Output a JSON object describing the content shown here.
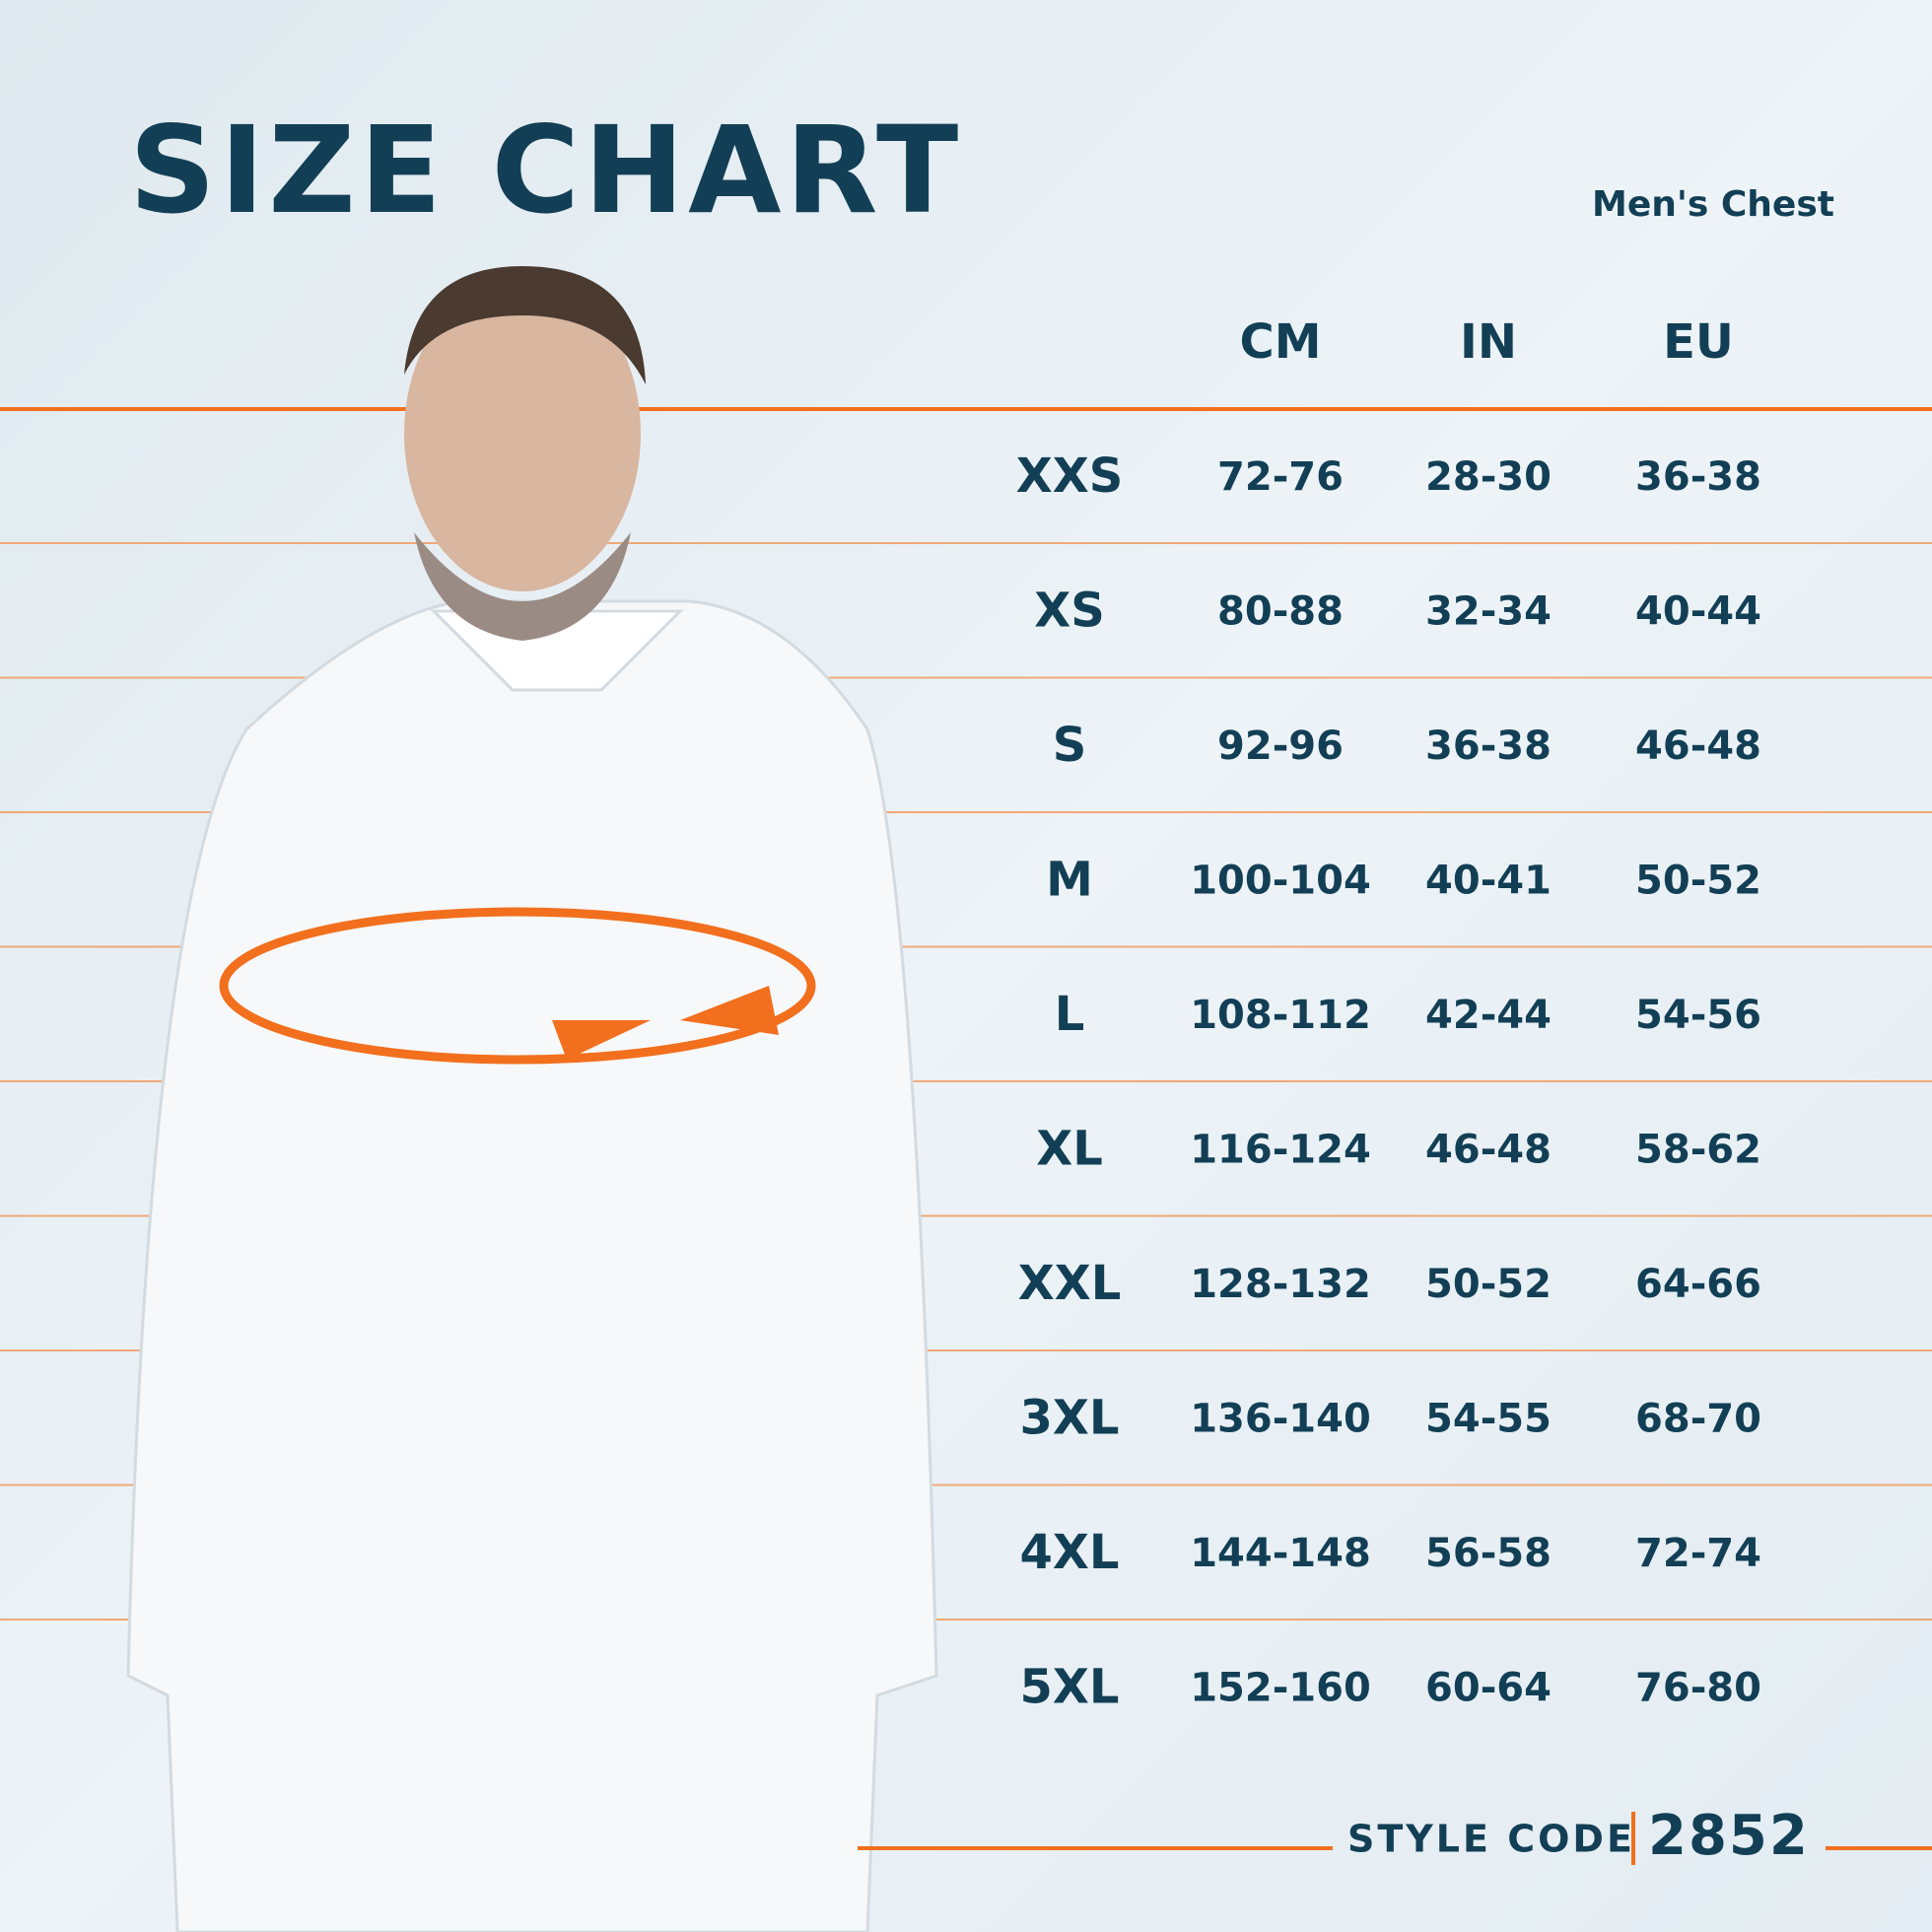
{
  "header": {
    "title": "SIZE CHART",
    "subtitle": "Men's Chest"
  },
  "table": {
    "columns": [
      "CM",
      "IN",
      "EU"
    ],
    "rows": [
      [
        "XXS",
        "72-76",
        "28-30",
        "36-38"
      ],
      [
        "XS",
        "80-88",
        "32-34",
        "40-44"
      ],
      [
        "S",
        "92-96",
        "36-38",
        "46-48"
      ],
      [
        "M",
        "100-104",
        "40-41",
        "50-52"
      ],
      [
        "L",
        "108-112",
        "42-44",
        "54-56"
      ],
      [
        "XL",
        "116-124",
        "46-48",
        "58-62"
      ],
      [
        "XXL",
        "128-132",
        "50-52",
        "64-66"
      ],
      [
        "3XL",
        "136-140",
        "54-55",
        "68-70"
      ],
      [
        "4XL",
        "144-148",
        "56-58",
        "72-74"
      ],
      [
        "5XL",
        "152-160",
        "60-64",
        "76-80"
      ]
    ]
  },
  "footer": {
    "label": "STYLE CODE",
    "code": "2852"
  }
}
